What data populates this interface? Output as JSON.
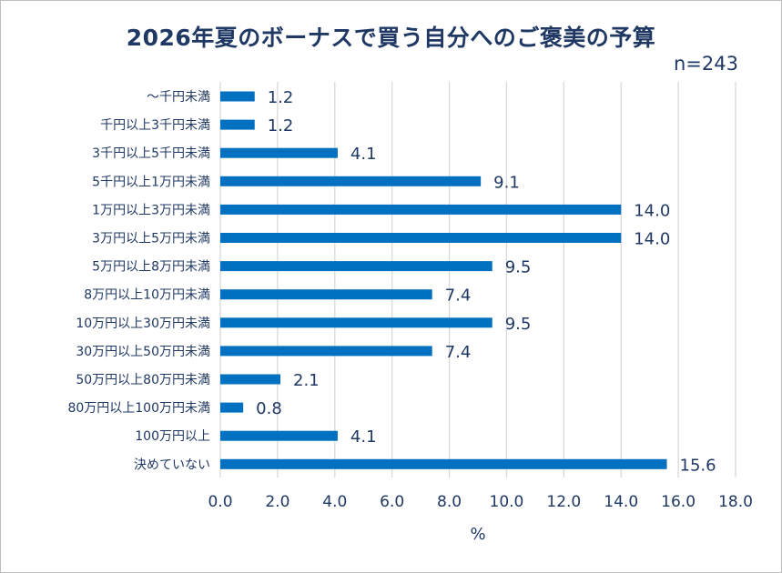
{
  "chart_data": {
    "type": "bar",
    "orientation": "horizontal",
    "title": "2026年夏のボーナスで買う自分へのご褒美の予算",
    "note": "n=243",
    "xlabel": "%",
    "ylabel": "",
    "xlim": [
      0,
      18
    ],
    "x_ticks": [
      "0.0",
      "2.0",
      "4.0",
      "6.0",
      "8.0",
      "10.0",
      "12.0",
      "14.0",
      "16.0",
      "18.0"
    ],
    "grid": true,
    "categories": [
      "～千円未満",
      "千円以上3千円未満",
      "3千円以上5千円未満",
      "5千円以上1万円未満",
      "1万円以上3万円未満",
      "3万円以上5万円未満",
      "5万円以上8万円未満",
      "8万円以上10万円未満",
      "10万円以上30万円未満",
      "30万円以上50万円未満",
      "50万円以上80万円未満",
      "80万円以上100万円未満",
      "100万円以上",
      "決めていない"
    ],
    "values": [
      1.2,
      1.2,
      4.1,
      9.1,
      14.0,
      14.0,
      9.5,
      7.4,
      9.5,
      7.4,
      2.1,
      0.8,
      4.1,
      15.6
    ],
    "value_labels": [
      "1.2",
      "1.2",
      "4.1",
      "9.1",
      "14.0",
      "14.0",
      "9.5",
      "7.4",
      "9.5",
      "7.4",
      "2.1",
      "0.8",
      "4.1",
      "15.6"
    ]
  },
  "colors": {
    "bar": "#0070c0",
    "text": "#1f3864",
    "grid": "#d9d9d9"
  }
}
